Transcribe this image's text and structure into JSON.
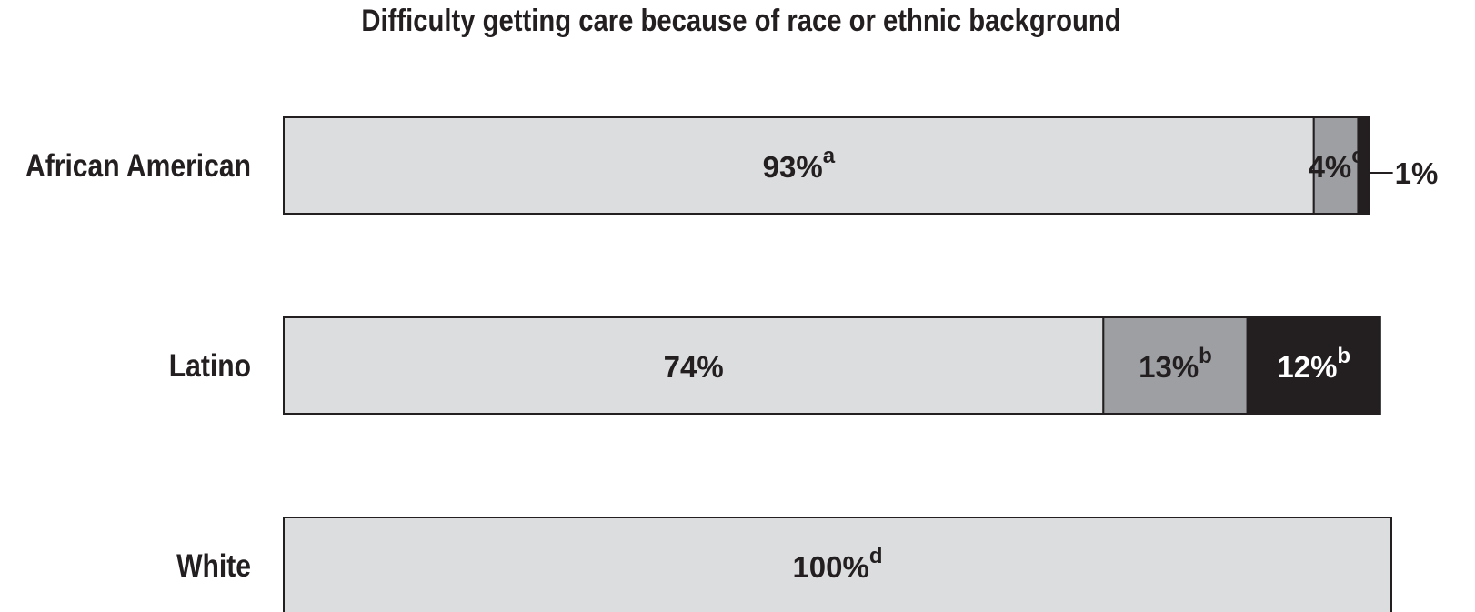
{
  "chart_data": {
    "type": "bar",
    "orientation": "horizontal",
    "stacked": true,
    "normalized": true,
    "title": "Difficulty getting care because of race or ethnic background",
    "categories": [
      "African American",
      "Latino",
      "White"
    ],
    "series": [
      {
        "values": [
          93,
          74,
          100
        ],
        "color": "#dcdddf",
        "text_color": "#231f20"
      },
      {
        "values": [
          4,
          13,
          0
        ],
        "color": "#9d9fa2",
        "text_color": "#231f20"
      },
      {
        "values": [
          1,
          12,
          0
        ],
        "color": "#231f20",
        "text_color": "#ffffff"
      }
    ],
    "labels": [
      [
        {
          "text": "93%",
          "sup": "a"
        },
        {
          "text": "4%",
          "sup": "c"
        },
        {
          "text": "1%",
          "sup": "",
          "callout": true
        }
      ],
      [
        {
          "text": "74%",
          "sup": ""
        },
        {
          "text": "13%",
          "sup": "b"
        },
        {
          "text": "12%",
          "sup": "b"
        }
      ],
      [
        {
          "text": "100%",
          "sup": "d"
        },
        null,
        null
      ]
    ],
    "xlim": [
      0,
      100
    ],
    "grid": false,
    "legend": "none"
  }
}
